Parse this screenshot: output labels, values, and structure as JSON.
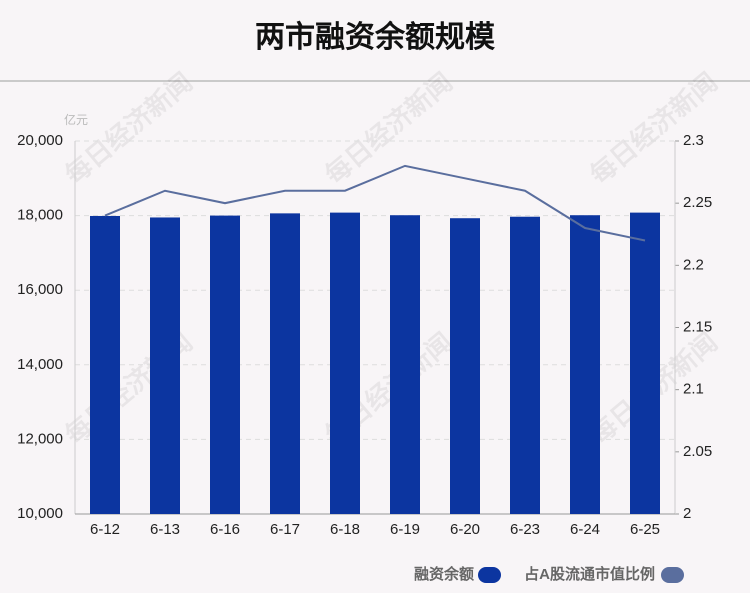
{
  "chart_data": {
    "type": "bar",
    "title": "两市融资余额规模",
    "ylabel": "亿元",
    "watermark": "每日经济新闻",
    "categories": [
      "6-12",
      "6-13",
      "6-16",
      "6-17",
      "6-18",
      "6-19",
      "6-20",
      "6-23",
      "6-24",
      "6-25"
    ],
    "series": [
      {
        "name": "融资余额",
        "color": "#0c35a0",
        "type": "bar",
        "values": [
          17990,
          17950,
          18000,
          18060,
          18080,
          18010,
          17930,
          17970,
          18010,
          18080
        ]
      },
      {
        "name": "占A股流通市值比例",
        "color": "#5a6e9e",
        "type": "line",
        "axis": "y2",
        "values": [
          2.24,
          2.26,
          2.25,
          2.26,
          2.26,
          2.28,
          2.27,
          2.26,
          2.23,
          2.22
        ]
      }
    ],
    "ylim": [
      10000,
      20000
    ],
    "yticks": [
      {
        "value": 10000,
        "label": "10,000"
      },
      {
        "value": 12000,
        "label": "12,000"
      },
      {
        "value": 14000,
        "label": "14,000"
      },
      {
        "value": 16000,
        "label": "16,000"
      },
      {
        "value": 18000,
        "label": "18,000"
      },
      {
        "value": 20000,
        "label": "20,000"
      }
    ],
    "y2lim": [
      2,
      2.3
    ],
    "y2ticks": [
      2,
      2.05,
      2.1,
      2.15,
      2.2,
      2.25,
      2.3
    ],
    "grid": true
  }
}
